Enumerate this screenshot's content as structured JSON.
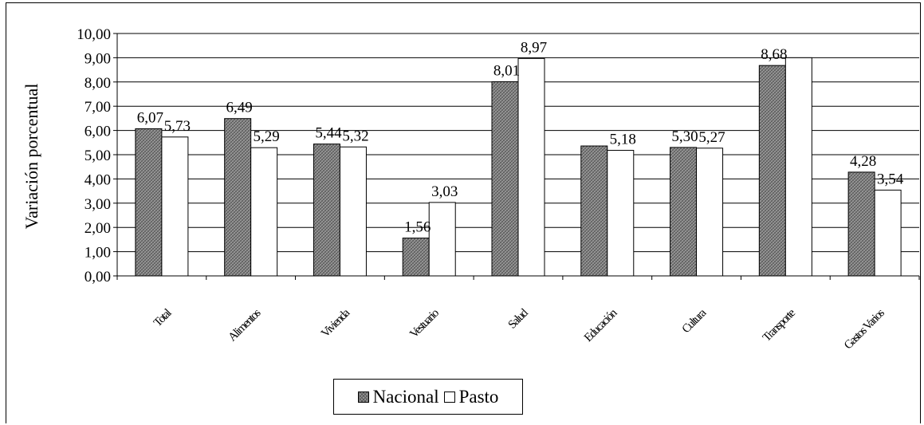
{
  "chart_data": {
    "type": "bar",
    "title": "",
    "xlabel": "",
    "ylabel": "Variación porcentual",
    "ylim": [
      0,
      10
    ],
    "ytick_step": 1,
    "ytick_labels": [
      "0,00",
      "1,00",
      "2,00",
      "3,00",
      "4,00",
      "5,00",
      "6,00",
      "7,00",
      "8,00",
      "9,00",
      "10,00"
    ],
    "grid": true,
    "legend_position": "bottom",
    "categories": [
      "Total",
      "Alimentos",
      "Vivienda",
      "Vestuario",
      "Salud",
      "Educación",
      "Cultura",
      "Transporte",
      "Gastos Varios"
    ],
    "series": [
      {
        "name": "Nacional",
        "color": "#9a9a9a",
        "pattern": "hatched",
        "values": [
          6.07,
          6.49,
          5.44,
          1.56,
          8.01,
          5.36,
          5.3,
          8.68,
          4.28
        ],
        "labels": [
          "6,07",
          "6,49",
          "5,44",
          "1,56",
          "8,01",
          "",
          "5,30",
          "8,68",
          "4,28"
        ]
      },
      {
        "name": "Pasto",
        "color": "#ffffff",
        "pattern": "solid",
        "values": [
          5.73,
          5.29,
          5.32,
          3.03,
          8.97,
          5.18,
          5.27,
          9.0,
          3.54
        ],
        "labels": [
          "5,73",
          "5,29",
          "5,32",
          "3,03",
          "8,97",
          "5,18",
          "5,27",
          "",
          "3,54"
        ]
      }
    ]
  }
}
